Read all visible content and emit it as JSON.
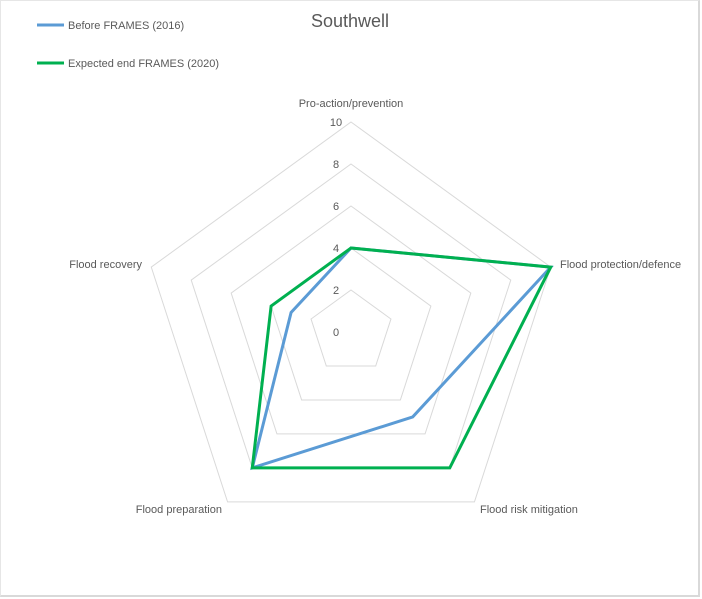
{
  "chart_data": {
    "type": "radar",
    "title": "Southwell",
    "categories": [
      "Pro-action/prevention",
      "Flood protection/defence",
      "Flood risk mitigation",
      "Flood preparation",
      "Flood recovery"
    ],
    "series": [
      {
        "name": "Before FRAMES (2016)",
        "color": "#5b9bd5",
        "values": [
          4,
          10,
          5,
          8,
          3
        ]
      },
      {
        "name": "Expected end FRAMES (2020)",
        "color": "#00b050",
        "values": [
          4,
          10,
          8,
          8,
          4
        ]
      }
    ],
    "radial_ticks": [
      "0",
      "2",
      "4",
      "6",
      "8",
      "10"
    ],
    "rlim": [
      0,
      10
    ],
    "grid": true,
    "legend_position": "top-left"
  },
  "legend": {
    "items": [
      {
        "label": "Before FRAMES (2016)",
        "color": "#5b9bd5"
      },
      {
        "label": "Expected end FRAMES (2020)",
        "color": "#00b050"
      }
    ]
  }
}
